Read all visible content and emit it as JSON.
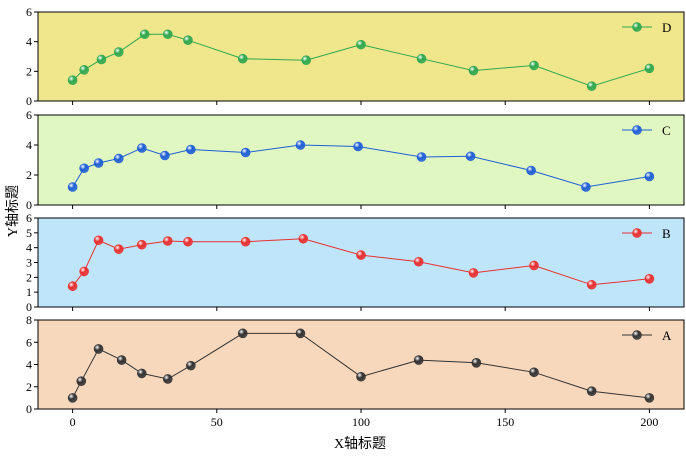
{
  "chart_data": {
    "type": "line",
    "xlabel": "X轴标题",
    "ylabel": "Y轴标题",
    "xlim": [
      -12,
      212
    ],
    "xticks": [
      0,
      50,
      100,
      150,
      200
    ],
    "marker": "sphere",
    "panels": [
      {
        "name": "D",
        "bg_color": "#f0e68c",
        "line_color": "#2fa84f",
        "ylim": [
          0,
          6
        ],
        "yticks": [
          0,
          2,
          4,
          6
        ],
        "x": [
          0,
          4,
          10,
          16,
          25,
          33,
          40,
          59,
          81,
          100,
          121,
          139,
          160,
          180,
          200
        ],
        "y": [
          1.4,
          2.1,
          2.8,
          3.3,
          4.5,
          4.5,
          4.1,
          2.85,
          2.75,
          3.8,
          2.85,
          2.05,
          2.4,
          1.0,
          2.2
        ]
      },
      {
        "name": "C",
        "bg_color": "#e0f7c2",
        "line_color": "#1f5fd6",
        "ylim": [
          0,
          6
        ],
        "yticks": [
          0,
          2,
          4,
          6
        ],
        "x": [
          0,
          4,
          9,
          16,
          24,
          32,
          41,
          60,
          79,
          99,
          121,
          138,
          159,
          178,
          200
        ],
        "y": [
          1.2,
          2.45,
          2.8,
          3.1,
          3.8,
          3.3,
          3.7,
          3.5,
          4.0,
          3.9,
          3.2,
          3.25,
          2.3,
          1.2,
          1.9
        ]
      },
      {
        "name": "B",
        "bg_color": "#bfe5fb",
        "line_color": "#e83030",
        "ylim": [
          0,
          6
        ],
        "yticks": [
          0,
          1,
          2,
          3,
          4,
          5,
          6
        ],
        "x": [
          0,
          4,
          9,
          16,
          24,
          33,
          40,
          60,
          80,
          100,
          120,
          139,
          160,
          180,
          200
        ],
        "y": [
          1.4,
          2.4,
          4.5,
          3.9,
          4.2,
          4.45,
          4.4,
          4.4,
          4.6,
          3.5,
          3.05,
          2.3,
          2.8,
          1.5,
          1.9
        ]
      },
      {
        "name": "A",
        "bg_color": "#f8d8bd",
        "line_color": "#333333",
        "ylim": [
          0,
          8
        ],
        "yticks": [
          0,
          2,
          4,
          6,
          8
        ],
        "x": [
          0,
          3,
          9,
          17,
          24,
          33,
          41,
          59,
          79,
          100,
          120,
          140,
          160,
          180,
          200
        ],
        "y": [
          1.0,
          2.5,
          5.4,
          4.4,
          3.2,
          2.7,
          3.9,
          6.8,
          6.8,
          2.9,
          4.4,
          4.15,
          3.3,
          1.6,
          1.0
        ]
      }
    ]
  }
}
